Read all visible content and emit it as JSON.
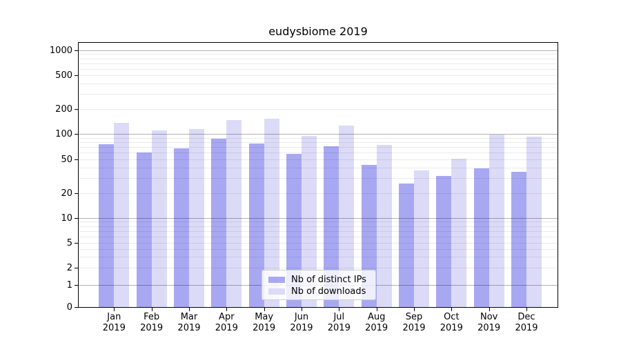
{
  "chart_data": {
    "type": "bar",
    "title": "eudysbiome 2019",
    "months": [
      "Jan",
      "Feb",
      "Mar",
      "Apr",
      "May",
      "Jun",
      "Jul",
      "Aug",
      "Sep",
      "Oct",
      "Nov",
      "Dec"
    ],
    "year": "2019",
    "categories": [
      "Jan 2019",
      "Feb 2019",
      "Mar 2019",
      "Apr 2019",
      "May 2019",
      "Jun 2019",
      "Jul 2019",
      "Aug 2019",
      "Sep 2019",
      "Oct 2019",
      "Nov 2019",
      "Dec 2019"
    ],
    "series": [
      {
        "name": "Nb of distinct IPs",
        "color": "#a8a8f2",
        "values": [
          75,
          60,
          68,
          87,
          77,
          58,
          72,
          43,
          26,
          32,
          39,
          36
        ]
      },
      {
        "name": "Nb of downloads",
        "color": "#dbdbf8",
        "values": [
          136,
          110,
          115,
          147,
          152,
          94,
          125,
          74,
          37,
          51,
          98,
          93
        ]
      }
    ],
    "ylabel": "",
    "xlabel": "",
    "yscale": "log-like",
    "y_ticks": [
      0,
      1,
      2,
      5,
      10,
      20,
      50,
      100,
      200,
      500,
      1000
    ],
    "ylim": [
      0,
      1300
    ],
    "grid": true,
    "legend_position": "lower center",
    "colors": {
      "axis": "#000000",
      "major_grid": "#b3b3b3",
      "minor_grid": "#ebebeb",
      "background": "#ffffff"
    }
  }
}
